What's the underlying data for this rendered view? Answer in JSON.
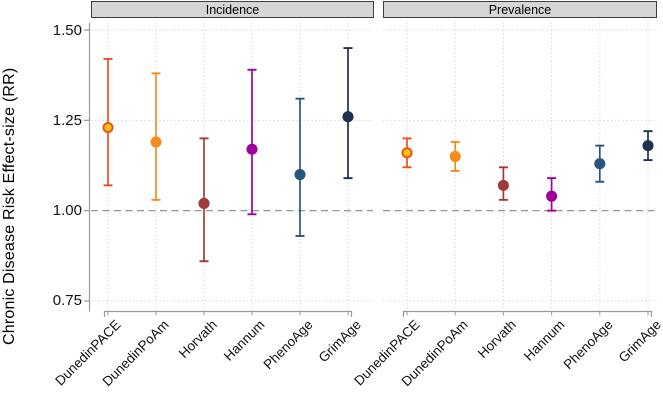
{
  "chart_data": {
    "type": "scatter",
    "subtype": "point-estimates-with-95CI",
    "title": "",
    "ylabel": "Chronic Disease Risk Effect-size (RR)",
    "yticks": [
      "1.50",
      "1.25",
      "1.00",
      "0.75"
    ],
    "ytick_values": [
      1.5,
      1.25,
      1.0,
      0.75
    ],
    "ylim": [
      0.73,
      1.52
    ],
    "ref_line": 1.0,
    "grid": "dotted",
    "legend": "none",
    "categories": [
      "DunedinPACE",
      "DunedinPoAm",
      "Horvath",
      "Hannum",
      "PhenoAge",
      "GrimAge"
    ],
    "colors": {
      "DunedinPACE": {
        "fill": "#ffc30b",
        "line": "#e8511d"
      },
      "DunedinPoAm": {
        "fill": "#f78b1e",
        "line": "#f78b1e"
      },
      "Horvath": {
        "fill": "#a03a3a",
        "line": "#a03a3a"
      },
      "Hannum": {
        "fill": "#9e009e",
        "line": "#9e009e"
      },
      "PhenoAge": {
        "fill": "#27567f",
        "line": "#27567f"
      },
      "GrimAge": {
        "fill": "#1f3150",
        "line": "#1f3150"
      }
    },
    "style": {
      "grid_color": "#d8d8d8",
      "ref_line_color": "#8a8a8a",
      "axis_color": "#9a9a9a",
      "header_bg": "#d6d6d6",
      "header_border": "#3f3f3f"
    },
    "panels": [
      {
        "label": "Incidence",
        "points": [
          {
            "clock": "DunedinPACE",
            "rr": 1.23,
            "lo": 1.07,
            "hi": 1.42
          },
          {
            "clock": "DunedinPoAm",
            "rr": 1.19,
            "lo": 1.03,
            "hi": 1.38
          },
          {
            "clock": "Horvath",
            "rr": 1.02,
            "lo": 0.86,
            "hi": 1.2
          },
          {
            "clock": "Hannum",
            "rr": 1.17,
            "lo": 0.99,
            "hi": 1.39
          },
          {
            "clock": "PhenoAge",
            "rr": 1.1,
            "lo": 0.93,
            "hi": 1.31
          },
          {
            "clock": "GrimAge",
            "rr": 1.26,
            "lo": 1.09,
            "hi": 1.45
          }
        ]
      },
      {
        "label": "Prevalence",
        "points": [
          {
            "clock": "DunedinPACE",
            "rr": 1.16,
            "lo": 1.12,
            "hi": 1.2
          },
          {
            "clock": "DunedinPoAm",
            "rr": 1.15,
            "lo": 1.11,
            "hi": 1.19
          },
          {
            "clock": "Horvath",
            "rr": 1.07,
            "lo": 1.03,
            "hi": 1.12
          },
          {
            "clock": "Hannum",
            "rr": 1.04,
            "lo": 1.0,
            "hi": 1.09
          },
          {
            "clock": "PhenoAge",
            "rr": 1.13,
            "lo": 1.08,
            "hi": 1.18
          },
          {
            "clock": "GrimAge",
            "rr": 1.18,
            "lo": 1.14,
            "hi": 1.22
          }
        ]
      }
    ]
  }
}
